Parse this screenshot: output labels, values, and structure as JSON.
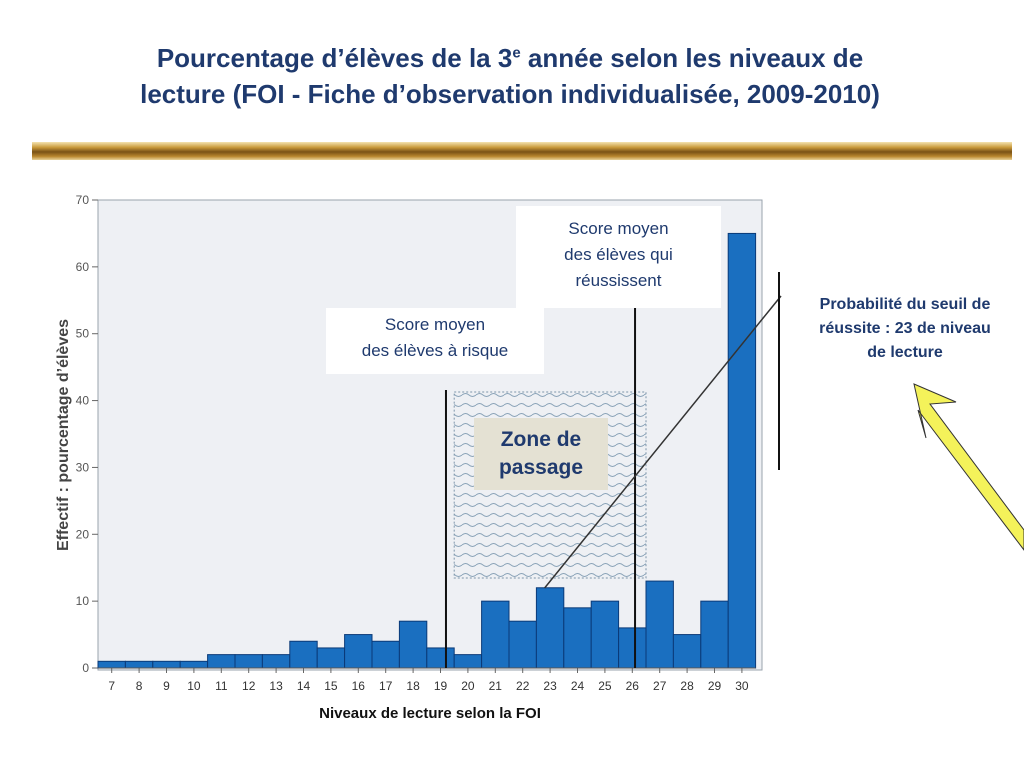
{
  "title_part1": "Pourcentage d’élèves de la 3",
  "title_sup": "e",
  "title_part2": " année selon les niveaux de",
  "title_line2": "lecture (FOI - Fiche d’observation individualisée, 2009-2010)",
  "annotations": {
    "risk_line1": "Score moyen",
    "risk_line2": "des élèves à risque",
    "success_line1": "Score moyen",
    "success_line2": "des élèves qui",
    "success_line3": "réussissent",
    "zone_line1": "Zone de",
    "zone_line2": "passage",
    "prob_line1": "Probabilité du seuil de",
    "prob_line2": "réussite : 23 de niveau",
    "prob_line3": "de lecture"
  },
  "colors": {
    "bar": "#1a6fc0",
    "bar_edge": "#0a3a78",
    "title": "#1f3a6e",
    "plot_bg": "#eef0f4",
    "arrow": "#f4f25a"
  },
  "chart_data": {
    "type": "bar",
    "categories": [
      "7",
      "8",
      "9",
      "10",
      "11",
      "12",
      "13",
      "14",
      "15",
      "16",
      "17",
      "18",
      "19",
      "20",
      "21",
      "22",
      "23",
      "24",
      "25",
      "26",
      "27",
      "28",
      "29",
      "30"
    ],
    "values": [
      1,
      1,
      1,
      1,
      2,
      2,
      2,
      4,
      3,
      5,
      4,
      7,
      3,
      2,
      10,
      7,
      12,
      9,
      10,
      6,
      13,
      5,
      10,
      65
    ],
    "xlabel": "Niveaux de lecture selon la FOI",
    "ylabel": "Effectif : pourcentage d’élèves",
    "yticks": [
      0,
      10,
      20,
      30,
      40,
      50,
      60,
      70
    ],
    "ylim": [
      0,
      70
    ],
    "risk_mean_level": 19,
    "success_mean_level": 26,
    "threshold_level": 23,
    "transition_zone": [
      19,
      26
    ]
  }
}
